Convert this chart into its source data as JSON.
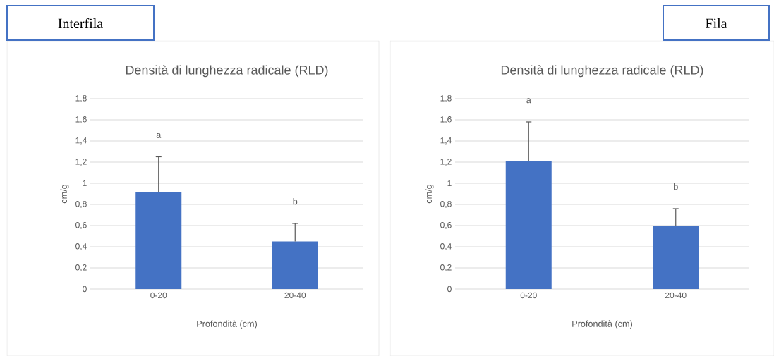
{
  "chart_data": [
    {
      "type": "bar",
      "title": "Densità di lunghezza radicale (RLD)",
      "xlabel": "Profondità (cm)",
      "ylabel": "cm/g",
      "categories": [
        "0-20",
        "20-40"
      ],
      "values": [
        0.92,
        0.45
      ],
      "errors": [
        [
          0.92,
          1.25
        ],
        [
          0.45,
          0.62
        ]
      ],
      "color": "#4472c4",
      "ylim": [
        0,
        1.8
      ],
      "yticks": [
        0,
        {
          "value": 0.2,
          "label": "0,2"
        },
        {
          "value": 0.4,
          "label": "0,4"
        },
        {
          "value": 0.6,
          "label": "0,6"
        },
        {
          "value": 0.8,
          "label": "0,8"
        },
        1,
        {
          "value": 1.2,
          "label": "1,2"
        },
        {
          "value": 1.4,
          "label": "1,4"
        },
        {
          "value": 1.6,
          "label": "1,6"
        },
        {
          "value": 1.8,
          "label": "1,8"
        }
      ],
      "grid": "y",
      "annotations": [
        "Interfila",
        "a",
        "b"
      ]
    },
    {
      "type": "bar",
      "title": "Densità di lunghezza radicale (RLD)",
      "xlabel": "Profondità (cm)",
      "ylabel": "cm/g",
      "categories": [
        "0-20",
        "20-40"
      ],
      "values": [
        1.21,
        0.6
      ],
      "errors": [
        [
          1.21,
          1.58
        ],
        [
          0.6,
          0.76
        ]
      ],
      "color": "#4472c4",
      "ylim": [
        0,
        1.8
      ],
      "yticks": [
        0,
        {
          "value": 0.2,
          "label": "0,2"
        },
        {
          "value": 0.4,
          "label": "0,4"
        },
        {
          "value": 0.6,
          "label": "0,6"
        },
        {
          "value": 0.8,
          "label": "0,8"
        },
        1,
        {
          "value": 1.2,
          "label": "1,2"
        },
        {
          "value": 1.4,
          "label": "1,4"
        },
        {
          "value": 1.6,
          "label": "1,6"
        },
        {
          "value": 1.8,
          "label": "1,8"
        }
      ],
      "grid": "y",
      "annotations": [
        "Fila",
        "a",
        "b"
      ]
    }
  ]
}
